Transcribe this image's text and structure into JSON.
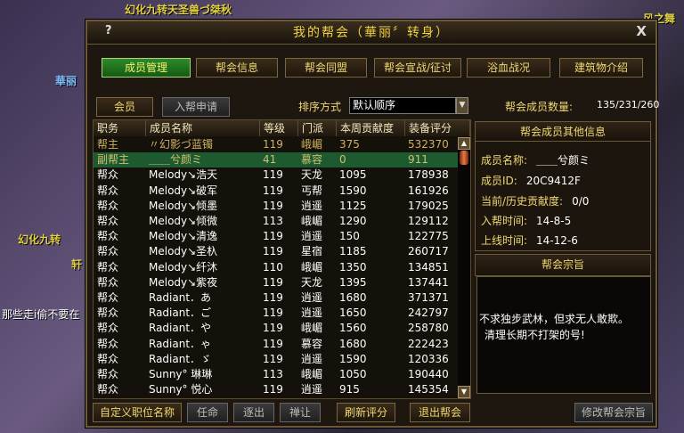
{
  "scene": {
    "labels": [
      "幻化九转天圣兽づ桀秋",
      "華丽",
      "幻化九转",
      "那些走i偷不要在",
      "风之舞",
      "轩"
    ]
  },
  "dialog": {
    "title": "我的帮会（華丽〞转身）",
    "help_icon": "?",
    "close_icon": "X"
  },
  "tabs": [
    {
      "label": "成员管理",
      "active": true
    },
    {
      "label": "帮会信息"
    },
    {
      "label": "帮会同盟"
    },
    {
      "label": "帮会宣战/征讨"
    },
    {
      "label": "浴血战况"
    },
    {
      "label": "建筑物介绍"
    }
  ],
  "subtabs": [
    {
      "label": "会员",
      "active": true
    },
    {
      "label": "入帮申请"
    }
  ],
  "sort": {
    "label": "排序方式",
    "value": "默认顺序"
  },
  "member_count": {
    "label": "帮会成员数量:",
    "value": "135/231/260"
  },
  "table": {
    "columns": [
      "职务",
      "成员名称",
      "等级",
      "门派",
      "本周贡献度",
      "装备评分"
    ],
    "rows": [
      [
        "帮主",
        "〃幻影づ蓝镯",
        "119",
        "峨嵋",
        "375",
        "532370"
      ],
      [
        "副帮主",
        "＿＿兮颜ミ",
        "41",
        "慕容",
        "0",
        "911"
      ],
      [
        "帮众",
        "Melody↘浩天",
        "119",
        "天龙",
        "1095",
        "178938"
      ],
      [
        "帮众",
        "Melody↘破军",
        "119",
        "丐帮",
        "1590",
        "161926"
      ],
      [
        "帮众",
        "Melody↘倾墨",
        "119",
        "逍遥",
        "1125",
        "179025"
      ],
      [
        "帮众",
        "Melody↘倾微",
        "113",
        "峨嵋",
        "1290",
        "129112"
      ],
      [
        "帮众",
        "Melody↘清逸",
        "119",
        "逍遥",
        "150",
        "122775"
      ],
      [
        "帮众",
        "Melody↘圣杁",
        "119",
        "星宿",
        "1185",
        "260717"
      ],
      [
        "帮众",
        "Melody↘纤沐",
        "110",
        "峨嵋",
        "1350",
        "134851"
      ],
      [
        "帮众",
        "Melody↘紫夜",
        "119",
        "天龙",
        "1395",
        "137441"
      ],
      [
        "帮众",
        "Radiant．あ",
        "119",
        "逍遥",
        "1680",
        "371371"
      ],
      [
        "帮众",
        "Radiant．ご",
        "119",
        "逍遥",
        "1650",
        "242797"
      ],
      [
        "帮众",
        "Radiant．や",
        "119",
        "峨嵋",
        "1560",
        "258780"
      ],
      [
        "帮众",
        "Radiant．ゃ",
        "119",
        "慕容",
        "1680",
        "222423"
      ],
      [
        "帮众",
        "Radiant．ゞ",
        "119",
        "逍遥",
        "1590",
        "120336"
      ],
      [
        "帮众",
        "Sunny° 琳琳",
        "113",
        "峨嵋",
        "1050",
        "190440"
      ],
      [
        "帮众",
        "Sunny° 悦心",
        "119",
        "逍遥",
        "915",
        "145354"
      ]
    ],
    "selected_row": 1
  },
  "buttons": {
    "custom": "自定义职位名称",
    "appoint": "任命",
    "expel": "逐出",
    "abdicate": "禅让",
    "refresh": "刷新评分",
    "quit": "退出帮会",
    "edit_motto": "修改帮会宗旨"
  },
  "info": {
    "title": "帮会成员其他信息",
    "items": [
      {
        "label": "成员名称:",
        "value": "＿＿兮颜ミ"
      },
      {
        "label": "成员ID:",
        "value": "20C9412F"
      },
      {
        "label": "当前/历史贡献度:",
        "value": "0/0"
      },
      {
        "label": "入帮时间:",
        "value": "14-8-5"
      },
      {
        "label": "上线时间:",
        "value": "14-12-6"
      }
    ]
  },
  "motto": {
    "title": "帮会宗旨",
    "lines": [
      "不求独步武林，但求无人敢欺。",
      "清理长期不打架的号!"
    ]
  },
  "colors": {
    "active_tab": "#1e7a1e",
    "text_gold": "#f0d870",
    "selected_row": "#1e5a30"
  }
}
